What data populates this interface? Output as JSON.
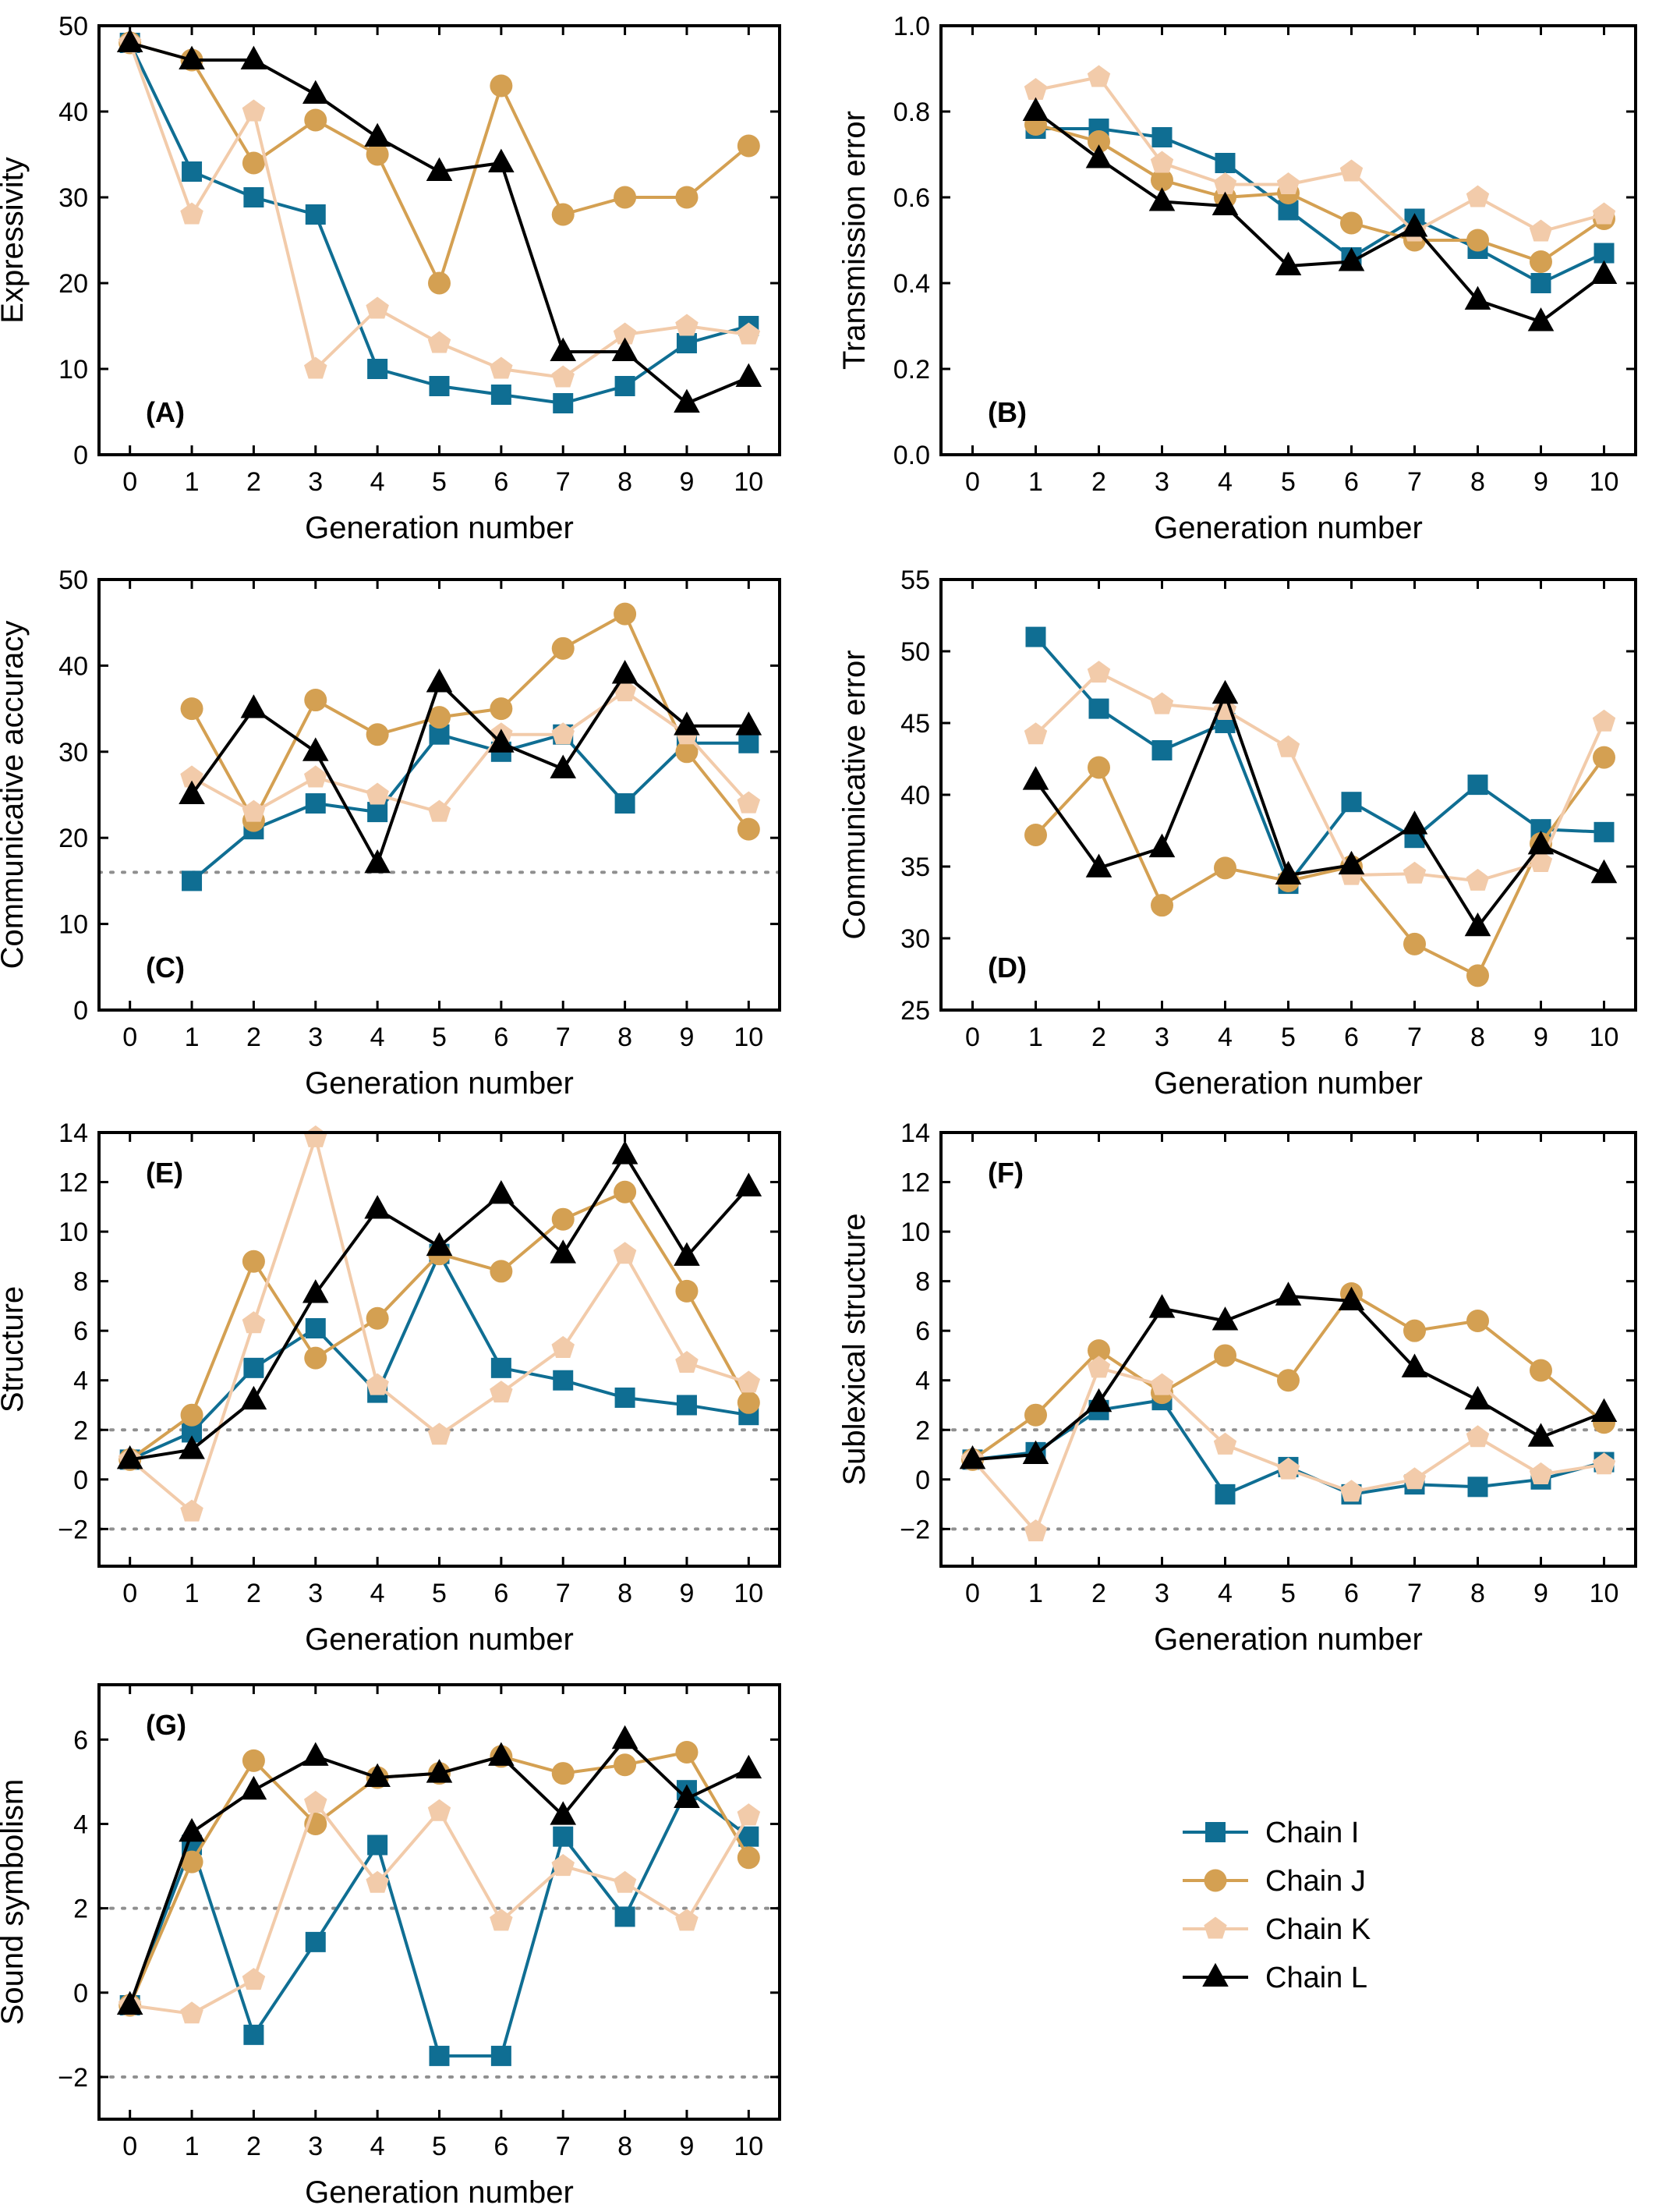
{
  "chart_data": [
    {
      "type": "line",
      "panel_label": "(A)",
      "xlabel": "Generation number",
      "ylabel": "Expressivity",
      "xlim": [
        -0.5,
        10.5
      ],
      "ylim": [
        0,
        50
      ],
      "xticks": [
        "0",
        "1",
        "2",
        "3",
        "4",
        "5",
        "6",
        "7",
        "8",
        "9",
        "10"
      ],
      "yticks": [
        "0",
        "10",
        "20",
        "30",
        "40",
        "50"
      ],
      "reference_lines": [],
      "series": [
        {
          "name": "Chain I",
          "x": [
            0,
            1,
            2,
            3,
            4,
            5,
            6,
            7,
            8,
            9,
            10
          ],
          "values": [
            48,
            33,
            30,
            28,
            10,
            8,
            7,
            6,
            8,
            13,
            15
          ]
        },
        {
          "name": "Chain J",
          "x": [
            0,
            1,
            2,
            3,
            4,
            5,
            6,
            7,
            8,
            9,
            10
          ],
          "values": [
            48,
            46,
            34,
            39,
            35,
            20,
            43,
            28,
            30,
            30,
            36
          ]
        },
        {
          "name": "Chain K",
          "x": [
            0,
            1,
            2,
            3,
            4,
            5,
            6,
            7,
            8,
            9,
            10
          ],
          "values": [
            48,
            28,
            40,
            10,
            17,
            13,
            10,
            9,
            14,
            15,
            14
          ]
        },
        {
          "name": "Chain L",
          "x": [
            0,
            1,
            2,
            3,
            4,
            5,
            6,
            7,
            8,
            9,
            10
          ],
          "values": [
            48,
            46,
            46,
            42,
            37,
            33,
            34,
            12,
            12,
            6,
            9
          ]
        }
      ]
    },
    {
      "type": "line",
      "panel_label": "(B)",
      "xlabel": "Generation number",
      "ylabel": "Transmission error",
      "xlim": [
        -0.5,
        10.5
      ],
      "ylim": [
        0,
        1
      ],
      "xticks": [
        "0",
        "1",
        "2",
        "3",
        "4",
        "5",
        "6",
        "7",
        "8",
        "9",
        "10"
      ],
      "yticks": [
        "0.0",
        "0.2",
        "0.4",
        "0.6",
        "0.8",
        "1.0"
      ],
      "reference_lines": [],
      "series": [
        {
          "name": "Chain I",
          "x": [
            1,
            2,
            3,
            4,
            5,
            6,
            7,
            8,
            9,
            10
          ],
          "values": [
            0.76,
            0.76,
            0.74,
            0.68,
            0.57,
            0.46,
            0.55,
            0.48,
            0.4,
            0.47
          ]
        },
        {
          "name": "Chain J",
          "x": [
            1,
            2,
            3,
            4,
            5,
            6,
            7,
            8,
            9,
            10
          ],
          "values": [
            0.77,
            0.73,
            0.64,
            0.6,
            0.61,
            0.54,
            0.5,
            0.5,
            0.45,
            0.55
          ]
        },
        {
          "name": "Chain K",
          "x": [
            1,
            2,
            3,
            4,
            5,
            6,
            7,
            8,
            9,
            10
          ],
          "values": [
            0.85,
            0.88,
            0.68,
            0.63,
            0.63,
            0.66,
            0.52,
            0.6,
            0.52,
            0.56
          ]
        },
        {
          "name": "Chain L",
          "x": [
            1,
            2,
            3,
            4,
            5,
            6,
            7,
            8,
            9,
            10
          ],
          "values": [
            0.8,
            0.69,
            0.59,
            0.58,
            0.44,
            0.45,
            0.53,
            0.36,
            0.31,
            0.42
          ]
        }
      ]
    },
    {
      "type": "line",
      "panel_label": "(C)",
      "xlabel": "Generation number",
      "ylabel": "Communicative accuracy",
      "xlim": [
        -0.5,
        10.5
      ],
      "ylim": [
        0,
        50
      ],
      "xticks": [
        "0",
        "1",
        "2",
        "3",
        "4",
        "5",
        "6",
        "7",
        "8",
        "9",
        "10"
      ],
      "yticks": [
        "0",
        "10",
        "20",
        "30",
        "40",
        "50"
      ],
      "reference_lines": [
        16
      ],
      "series": [
        {
          "name": "Chain I",
          "x": [
            1,
            2,
            3,
            4,
            5,
            6,
            7,
            8,
            9,
            10
          ],
          "values": [
            15,
            21,
            24,
            23,
            32,
            30,
            32,
            24,
            31,
            31
          ]
        },
        {
          "name": "Chain J",
          "x": [
            1,
            2,
            3,
            4,
            5,
            6,
            7,
            8,
            9,
            10
          ],
          "values": [
            35,
            22,
            36,
            32,
            34,
            35,
            42,
            46,
            30,
            21
          ]
        },
        {
          "name": "Chain K",
          "x": [
            1,
            2,
            3,
            4,
            5,
            6,
            7,
            8,
            9,
            10
          ],
          "values": [
            27,
            23,
            27,
            25,
            23,
            32,
            32,
            37,
            32,
            24
          ]
        },
        {
          "name": "Chain L",
          "x": [
            1,
            2,
            3,
            4,
            5,
            6,
            7,
            8,
            9,
            10
          ],
          "values": [
            25,
            35,
            30,
            17,
            38,
            31,
            28,
            39,
            33,
            33
          ]
        }
      ]
    },
    {
      "type": "line",
      "panel_label": "(D)",
      "xlabel": "Generation number",
      "ylabel": "Communicative error",
      "xlim": [
        -0.5,
        10.5
      ],
      "ylim": [
        25,
        55
      ],
      "xticks": [
        "0",
        "1",
        "2",
        "3",
        "4",
        "5",
        "6",
        "7",
        "8",
        "9",
        "10"
      ],
      "yticks": [
        "25",
        "30",
        "35",
        "40",
        "45",
        "50",
        "55"
      ],
      "reference_lines": [],
      "series": [
        {
          "name": "Chain I",
          "x": [
            1,
            2,
            3,
            4,
            5,
            6,
            7,
            8,
            9,
            10
          ],
          "values": [
            51.0,
            46.0,
            43.1,
            45.0,
            33.8,
            39.5,
            37.0,
            40.7,
            37.6,
            37.4
          ]
        },
        {
          "name": "Chain J",
          "x": [
            1,
            2,
            3,
            4,
            5,
            6,
            7,
            8,
            9,
            10
          ],
          "values": [
            37.2,
            41.9,
            32.3,
            34.9,
            34.0,
            35.0,
            29.6,
            27.4,
            36.6,
            42.6
          ]
        },
        {
          "name": "Chain K",
          "x": [
            1,
            2,
            3,
            4,
            5,
            6,
            7,
            8,
            9,
            10
          ],
          "values": [
            44.2,
            48.5,
            46.3,
            45.9,
            43.3,
            34.4,
            34.5,
            34.0,
            35.3,
            45.1
          ]
        },
        {
          "name": "Chain L",
          "x": [
            1,
            2,
            3,
            4,
            5,
            6,
            7,
            8,
            9,
            10
          ],
          "values": [
            41.0,
            34.9,
            36.3,
            47.0,
            34.4,
            35.1,
            37.9,
            30.8,
            36.5,
            34.5
          ]
        }
      ]
    },
    {
      "type": "line",
      "panel_label": "(E)",
      "xlabel": "Generation number",
      "ylabel": "Structure",
      "xlim": [
        -0.5,
        10.5
      ],
      "ylim": [
        -3.5,
        14
      ],
      "xticks": [
        "0",
        "1",
        "2",
        "3",
        "4",
        "5",
        "6",
        "7",
        "8",
        "9",
        "10"
      ],
      "yticks": [
        "−2",
        "0",
        "2",
        "4",
        "6",
        "8",
        "10",
        "12",
        "14"
      ],
      "ytick_values": [
        -2,
        0,
        2,
        4,
        6,
        8,
        10,
        12,
        14
      ],
      "reference_lines": [
        2,
        -2
      ],
      "series": [
        {
          "name": "Chain I",
          "x": [
            0,
            1,
            2,
            3,
            4,
            5,
            6,
            7,
            8,
            9,
            10
          ],
          "values": [
            0.8,
            1.9,
            4.5,
            6.1,
            3.5,
            9.1,
            4.5,
            4.0,
            3.3,
            3.0,
            2.6
          ]
        },
        {
          "name": "Chain J",
          "x": [
            0,
            1,
            2,
            3,
            4,
            5,
            6,
            7,
            8,
            9,
            10
          ],
          "values": [
            0.8,
            2.6,
            8.8,
            4.9,
            6.5,
            9.1,
            8.4,
            10.5,
            11.6,
            7.6,
            3.1
          ]
        },
        {
          "name": "Chain K",
          "x": [
            0,
            1,
            2,
            3,
            4,
            5,
            6,
            7,
            8,
            9,
            10
          ],
          "values": [
            0.8,
            -1.3,
            6.3,
            13.8,
            3.8,
            1.8,
            3.5,
            5.3,
            9.1,
            4.7,
            3.9
          ]
        },
        {
          "name": "Chain L",
          "x": [
            0,
            1,
            2,
            3,
            4,
            5,
            6,
            7,
            8,
            9,
            10
          ],
          "values": [
            0.8,
            1.2,
            3.2,
            7.5,
            10.9,
            9.4,
            11.5,
            9.1,
            13.1,
            9.0,
            11.8
          ]
        }
      ]
    },
    {
      "type": "line",
      "panel_label": "(F)",
      "xlabel": "Generation number",
      "ylabel": "Sublexical structure",
      "xlim": [
        -0.5,
        10.5
      ],
      "ylim": [
        -3.5,
        14
      ],
      "xticks": [
        "0",
        "1",
        "2",
        "3",
        "4",
        "5",
        "6",
        "7",
        "8",
        "9",
        "10"
      ],
      "yticks": [
        "−2",
        "0",
        "2",
        "4",
        "6",
        "8",
        "10",
        "12",
        "14"
      ],
      "ytick_values": [
        -2,
        0,
        2,
        4,
        6,
        8,
        10,
        12,
        14
      ],
      "reference_lines": [
        2,
        -2
      ],
      "series": [
        {
          "name": "Chain I",
          "x": [
            0,
            1,
            2,
            3,
            4,
            5,
            6,
            7,
            8,
            9,
            10
          ],
          "values": [
            0.8,
            1.1,
            2.8,
            3.2,
            -0.6,
            0.5,
            -0.6,
            -0.2,
            -0.3,
            0.0,
            0.7
          ]
        },
        {
          "name": "Chain J",
          "x": [
            0,
            1,
            2,
            3,
            4,
            5,
            6,
            7,
            8,
            9,
            10
          ],
          "values": [
            0.8,
            2.6,
            5.2,
            3.5,
            5.0,
            4.0,
            7.5,
            6.0,
            6.4,
            4.4,
            2.3
          ]
        },
        {
          "name": "Chain K",
          "x": [
            0,
            1,
            2,
            3,
            4,
            5,
            6,
            7,
            8,
            9,
            10
          ],
          "values": [
            0.8,
            -2.1,
            4.5,
            3.8,
            1.4,
            0.4,
            -0.5,
            0.0,
            1.7,
            0.2,
            0.6
          ]
        },
        {
          "name": "Chain L",
          "x": [
            0,
            1,
            2,
            3,
            4,
            5,
            6,
            7,
            8,
            9,
            10
          ],
          "values": [
            0.8,
            1.0,
            3.1,
            6.9,
            6.4,
            7.4,
            7.2,
            4.5,
            3.2,
            1.7,
            2.7
          ]
        }
      ]
    },
    {
      "type": "line",
      "panel_label": "(G)",
      "xlabel": "Generation number",
      "ylabel": "Sound symbolism",
      "xlim": [
        -0.5,
        10.5
      ],
      "ylim": [
        -3,
        7.3
      ],
      "xticks": [
        "0",
        "1",
        "2",
        "3",
        "4",
        "5",
        "6",
        "7",
        "8",
        "9",
        "10"
      ],
      "yticks": [
        "−2",
        "0",
        "2",
        "4",
        "6"
      ],
      "ytick_values": [
        -2,
        0,
        2,
        4,
        6
      ],
      "reference_lines": [
        2,
        -2
      ],
      "series": [
        {
          "name": "Chain I",
          "x": [
            0,
            1,
            2,
            3,
            4,
            5,
            6,
            7,
            8,
            9,
            10
          ],
          "values": [
            -0.3,
            3.5,
            -1.0,
            1.2,
            3.5,
            -1.5,
            -1.5,
            3.7,
            1.8,
            4.8,
            3.7
          ]
        },
        {
          "name": "Chain J",
          "x": [
            0,
            1,
            2,
            3,
            4,
            5,
            6,
            7,
            8,
            9,
            10
          ],
          "values": [
            -0.3,
            3.1,
            5.5,
            4.0,
            5.1,
            5.2,
            5.6,
            5.2,
            5.4,
            5.7,
            3.2
          ]
        },
        {
          "name": "Chain K",
          "x": [
            0,
            1,
            2,
            3,
            4,
            5,
            6,
            7,
            8,
            9,
            10
          ],
          "values": [
            -0.3,
            -0.5,
            0.3,
            4.5,
            2.6,
            4.3,
            1.7,
            3.0,
            2.6,
            1.7,
            4.2
          ]
        },
        {
          "name": "Chain L",
          "x": [
            0,
            1,
            2,
            3,
            4,
            5,
            6,
            7,
            8,
            9,
            10
          ],
          "values": [
            -0.3,
            3.8,
            4.8,
            5.6,
            5.1,
            5.2,
            5.6,
            4.2,
            6.0,
            4.6,
            5.3
          ]
        }
      ]
    }
  ],
  "legend": {
    "placement": "lower-right",
    "entries": [
      {
        "name": "Chain I",
        "color": "#0f6e93",
        "marker": "square"
      },
      {
        "name": "Chain J",
        "color": "#d4a052",
        "marker": "circle"
      },
      {
        "name": "Chain K",
        "color": "#f2cbaa",
        "marker": "pentagon"
      },
      {
        "name": "Chain L",
        "color": "#000000",
        "marker": "triangle"
      }
    ]
  }
}
